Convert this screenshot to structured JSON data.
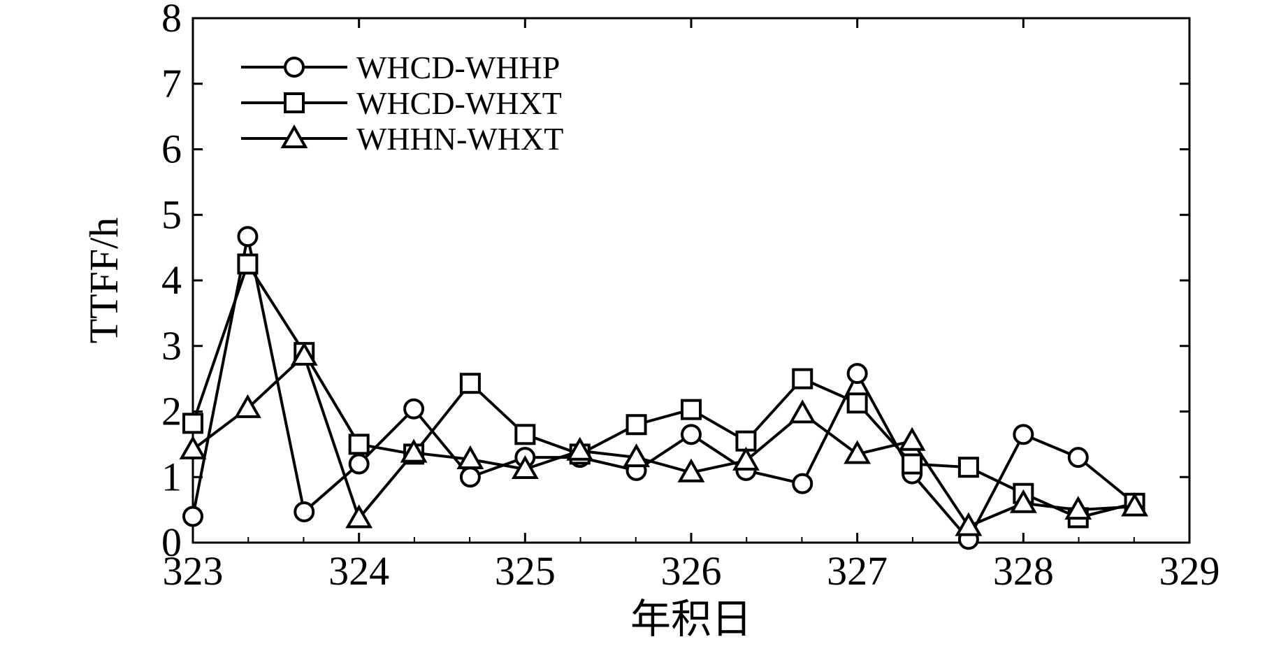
{
  "chart_data": {
    "type": "line",
    "title": "",
    "xlabel": "年积日",
    "ylabel": "TTFF/h",
    "xlim": [
      323,
      329
    ],
    "ylim": [
      0,
      8
    ],
    "xticks": [
      323,
      324,
      325,
      326,
      327,
      328,
      329
    ],
    "yticks": [
      0,
      1,
      2,
      3,
      4,
      5,
      6,
      7,
      8
    ],
    "xtick_labels": [
      "323",
      "324",
      "325",
      "326",
      "327",
      "328",
      "329"
    ],
    "ytick_labels": [
      "0",
      "1",
      "2",
      "3",
      "4",
      "5",
      "6",
      "7",
      "8"
    ],
    "grid": false,
    "legend_position": "top-left",
    "series": [
      {
        "name": "WHCD-WHHP",
        "marker": "circle",
        "x": [
          323.0,
          323.33,
          323.67,
          324.0,
          324.33,
          324.67,
          325.0,
          325.33,
          325.67,
          326.0,
          326.33,
          326.67,
          327.0,
          327.33,
          327.67,
          328.0,
          328.33,
          328.67
        ],
        "y": [
          0.4,
          4.67,
          0.47,
          1.2,
          2.04,
          1.0,
          1.3,
          1.3,
          1.1,
          1.65,
          1.1,
          0.9,
          2.58,
          1.05,
          0.05,
          1.65,
          1.3,
          0.6
        ]
      },
      {
        "name": "WHCD-WHXT",
        "marker": "square",
        "x": [
          323.0,
          323.33,
          323.67,
          324.0,
          324.33,
          324.67,
          325.0,
          325.33,
          325.67,
          326.0,
          326.33,
          326.67,
          327.0,
          327.33,
          327.67,
          328.0,
          328.33,
          328.67
        ],
        "y": [
          1.82,
          4.25,
          2.9,
          1.5,
          1.35,
          2.43,
          1.65,
          1.35,
          1.8,
          2.03,
          1.55,
          2.5,
          2.13,
          1.2,
          1.15,
          0.75,
          0.38,
          0.6
        ]
      },
      {
        "name": "WHHN-WHXT",
        "marker": "triangle",
        "x": [
          323.0,
          323.33,
          323.67,
          324.0,
          324.33,
          324.67,
          325.0,
          325.33,
          325.67,
          326.0,
          326.33,
          326.67,
          327.0,
          327.33,
          327.67,
          328.0,
          328.33,
          328.67
        ],
        "y": [
          1.42,
          2.05,
          2.85,
          0.37,
          1.37,
          1.27,
          1.12,
          1.4,
          1.3,
          1.07,
          1.25,
          1.97,
          1.35,
          1.55,
          0.25,
          0.6,
          0.5,
          0.55
        ]
      }
    ]
  }
}
